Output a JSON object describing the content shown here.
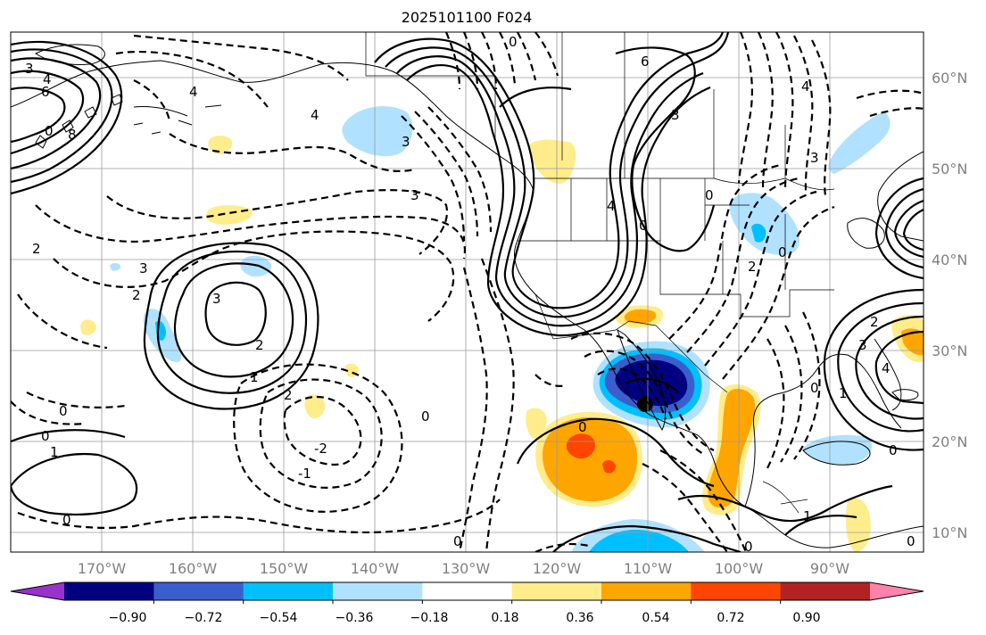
{
  "title": "2025101100 F024",
  "lat_labels": [
    "60°N",
    "50°N",
    "40°N",
    "30°N",
    "20°N",
    "10°N"
  ],
  "lon_labels": [
    "170°W",
    "160°W",
    "150°W",
    "140°W",
    "130°W",
    "120°W",
    "110°W",
    "100°W",
    "90°W"
  ],
  "colorbar": {
    "ticks": [
      "−0.90",
      "−0.72",
      "−0.54",
      "−0.36",
      "−0.18",
      "0.18",
      "0.36",
      "0.54",
      "0.72",
      "0.90"
    ],
    "colors": [
      "#9932cc",
      "#000080",
      "#3a5fcd",
      "#00bfff",
      "#b0e2ff",
      "#ffffff",
      "#ffec8b",
      "#ffa500",
      "#ff4500",
      "#b22222",
      "#ff82ab"
    ]
  },
  "contour_labels": {
    "c_0_north": "0",
    "c_6_top": "6",
    "c_3_top": "3",
    "c_4_ak": "4",
    "c_3_w": "3",
    "c_4_w": "4",
    "c_6_w": "6",
    "c_0_w": "0",
    "c_8_w": "8",
    "c_4_gulf": "4",
    "c_3_gulf": "3",
    "c_3_mid": "3",
    "c_2_w": "2",
    "c_3_high": "3",
    "c_2_high": "2",
    "c_1_high": "1",
    "c_3_west": "3",
    "c_2_west": "2",
    "c_0_west": "0",
    "c_0_sw": "0",
    "c_1_sw": "1",
    "c_2_s": "2",
    "c_m2_s": "-2",
    "c_m1_s": "-1",
    "c_0_s1": "0",
    "c_0_s2": "0",
    "c_0_bottom": "0",
    "c_0_pac": "0",
    "c_4_rock": "4",
    "c_0_rock": "0",
    "c_0_lakes": "0",
    "c_2_lakes": "2",
    "c_0_plains": "0",
    "c_3_ne": "3",
    "c_4_ne": "4",
    "c_3_e": "3",
    "c_2_e": "2",
    "c_4_e": "4",
    "c_1_e": "1",
    "c_0_gulf": "0",
    "c_0_carib": "0",
    "c_1_cam": "1",
    "c_0_cam": "0",
    "c_0_cam2": "0"
  }
}
